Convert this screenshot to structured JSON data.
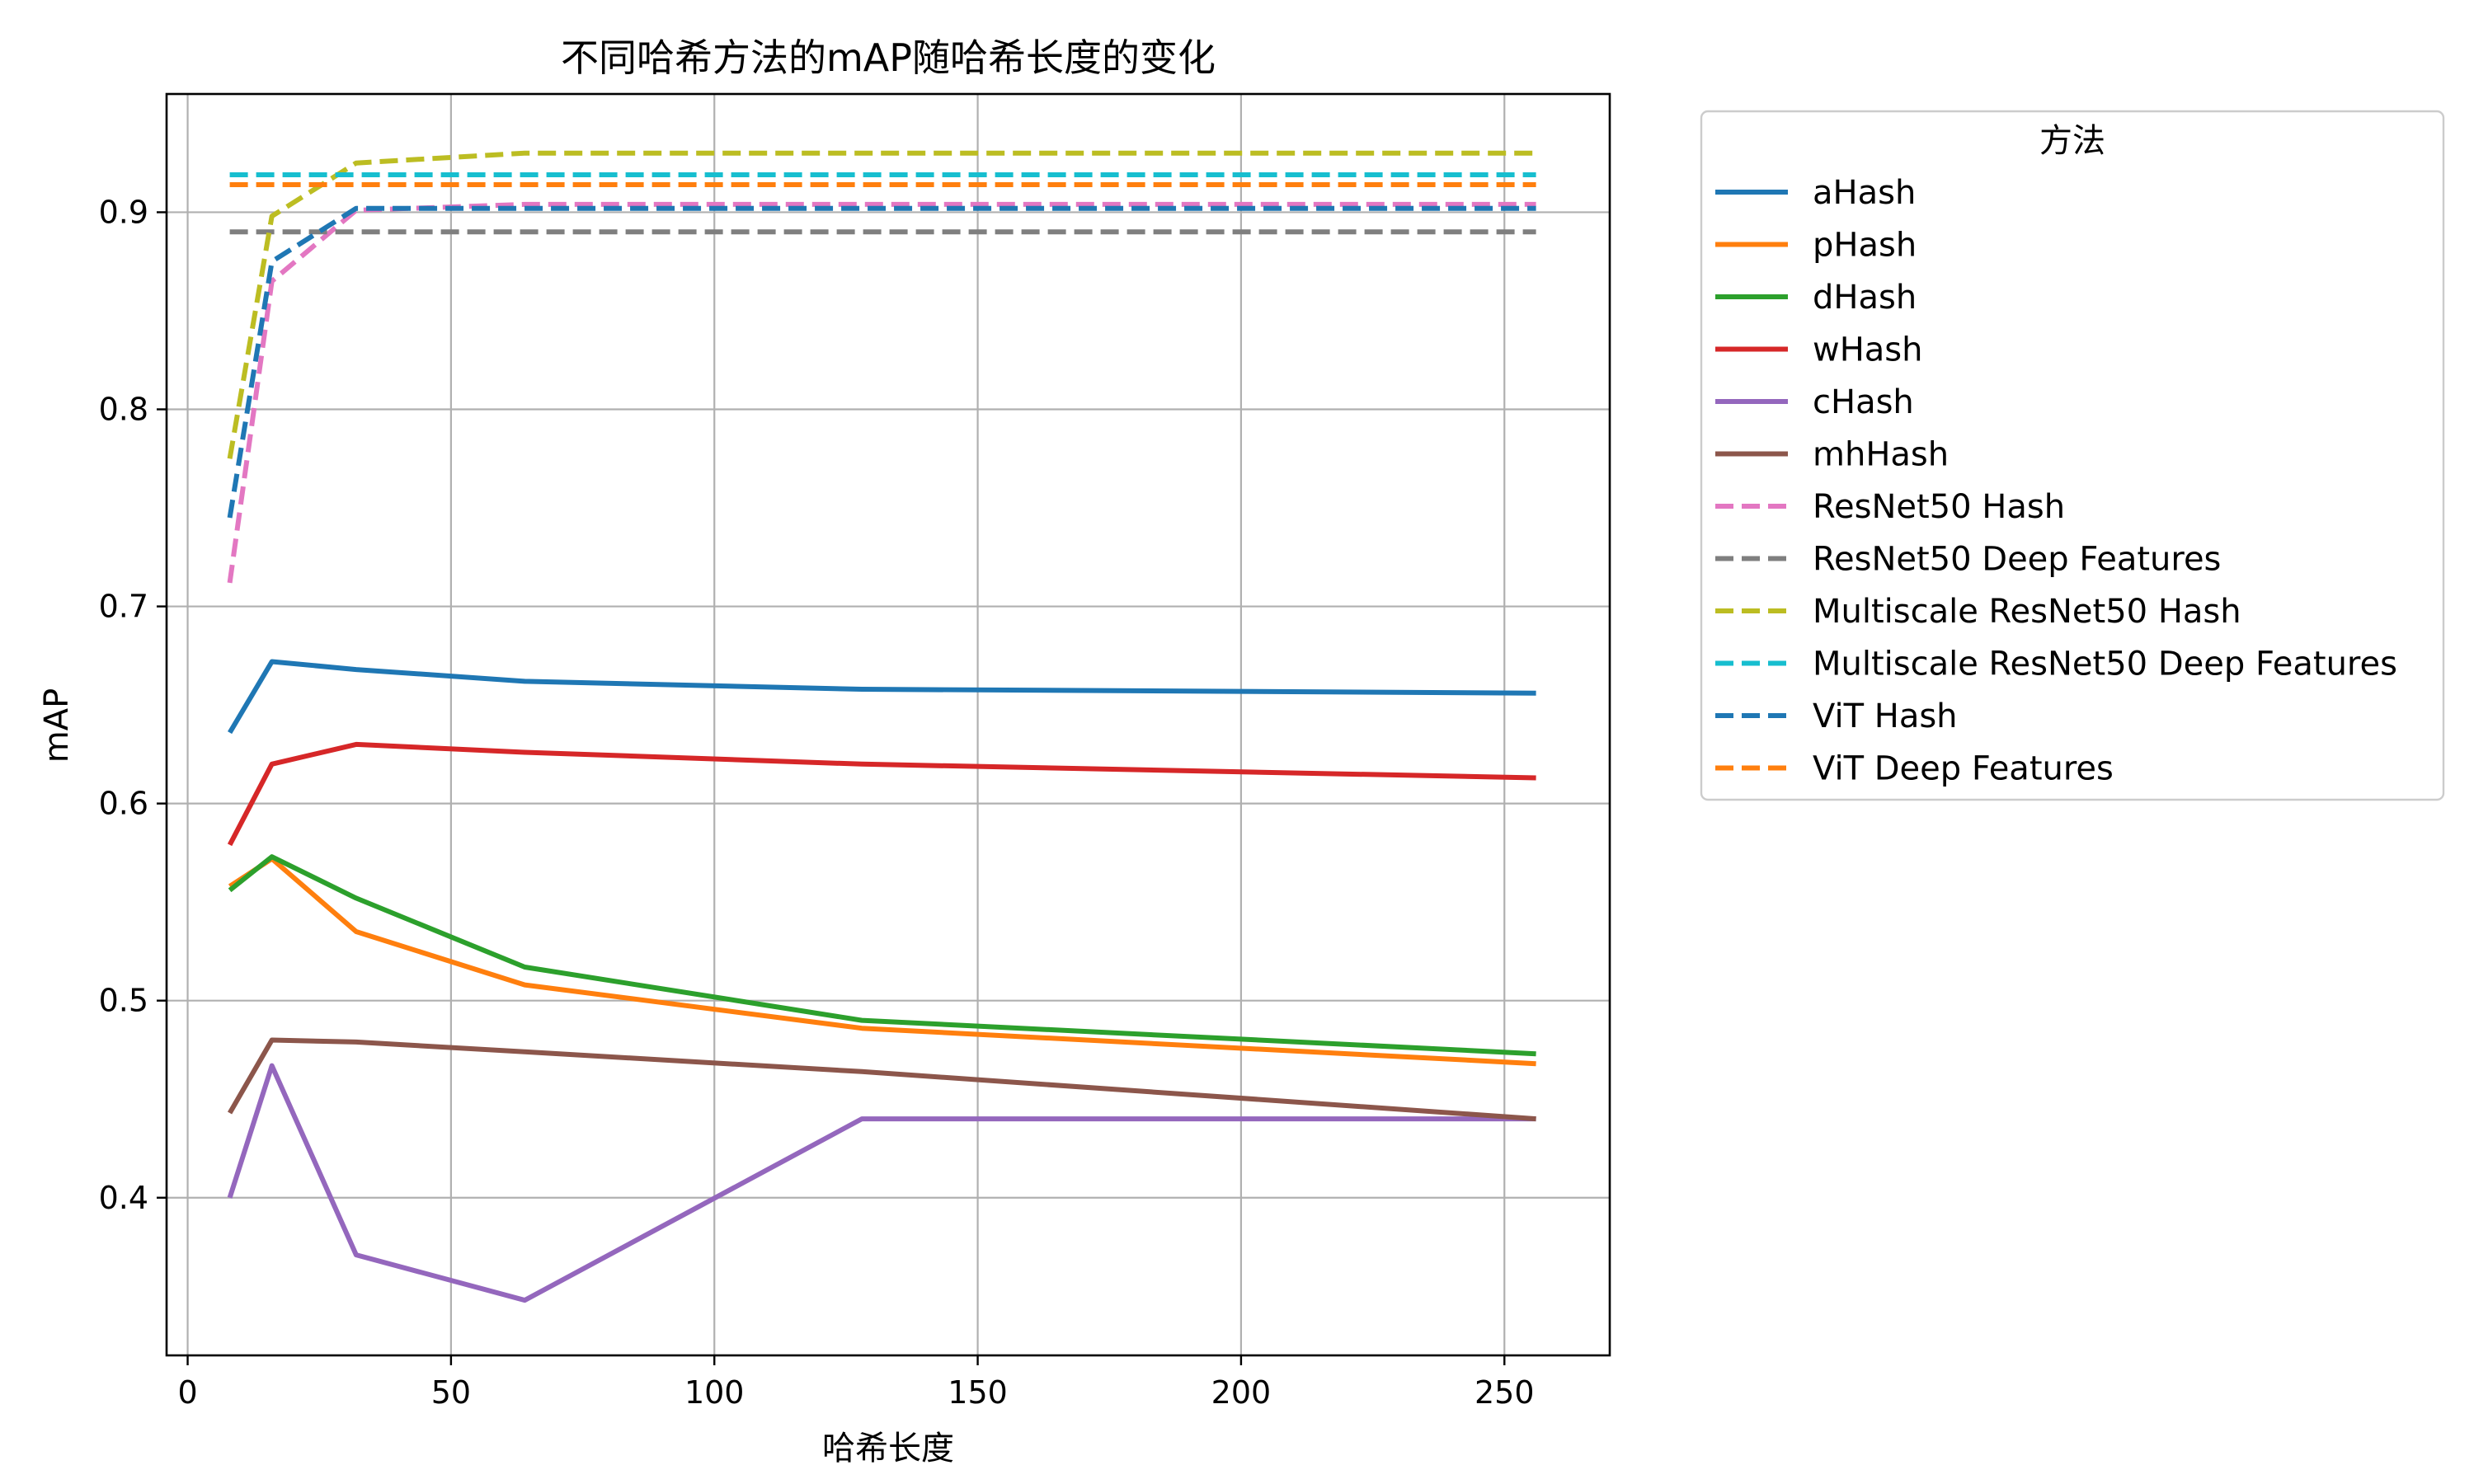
{
  "chart_data": {
    "type": "line",
    "title": "不同哈希方法的mAP随哈希长度的变化",
    "xlabel": "哈希长度",
    "ylabel": "mAP",
    "xlim": [
      -4,
      270
    ],
    "ylim": [
      0.32,
      0.96
    ],
    "x_ticks": [
      0,
      50,
      100,
      150,
      200,
      250
    ],
    "x_tick_labels": [
      "0",
      "50",
      "100",
      "150",
      "200",
      "250"
    ],
    "y_ticks": [
      0.4,
      0.5,
      0.6,
      0.7,
      0.8,
      0.9
    ],
    "y_tick_labels": [
      "0.4",
      "0.5",
      "0.6",
      "0.7",
      "0.8",
      "0.9"
    ],
    "grid": true,
    "legend": {
      "title": "方法",
      "placement": "outside-right"
    },
    "x": [
      8,
      16,
      32,
      64,
      128,
      256
    ],
    "series": [
      {
        "name": "aHash",
        "color": "#1f77b4",
        "dash": "solid",
        "values": [
          0.636,
          0.672,
          0.668,
          0.662,
          0.658,
          0.656
        ]
      },
      {
        "name": "pHash",
        "color": "#ff7f0e",
        "dash": "solid",
        "values": [
          0.558,
          0.572,
          0.535,
          0.508,
          0.486,
          0.468
        ]
      },
      {
        "name": "dHash",
        "color": "#2ca02c",
        "dash": "solid",
        "values": [
          0.556,
          0.573,
          0.552,
          0.517,
          0.49,
          0.473
        ]
      },
      {
        "name": "wHash",
        "color": "#d62728",
        "dash": "solid",
        "values": [
          0.579,
          0.62,
          0.63,
          0.626,
          0.62,
          0.613
        ]
      },
      {
        "name": "cHash",
        "color": "#9467bd",
        "dash": "solid",
        "values": [
          0.4,
          0.467,
          0.371,
          0.348,
          0.44,
          0.44
        ]
      },
      {
        "name": "mhHash",
        "color": "#8c564b",
        "dash": "solid",
        "values": [
          0.443,
          0.48,
          0.479,
          0.474,
          0.464,
          0.44
        ]
      },
      {
        "name": "ResNet50 Hash",
        "color": "#e377c2",
        "dash": "dashed",
        "values": [
          0.712,
          0.865,
          0.901,
          0.904,
          0.904,
          0.904
        ]
      },
      {
        "name": "ResNet50 Deep Features",
        "color": "#7f7f7f",
        "dash": "dashed",
        "values": [
          0.89,
          0.89,
          0.89,
          0.89,
          0.89,
          0.89
        ]
      },
      {
        "name": "Multiscale ResNet50 Hash",
        "color": "#bcbd22",
        "dash": "dashed",
        "values": [
          0.775,
          0.898,
          0.925,
          0.93,
          0.93,
          0.93
        ]
      },
      {
        "name": "Multiscale ResNet50 Deep Features",
        "color": "#17becf",
        "dash": "dashed",
        "values": [
          0.919,
          0.919,
          0.919,
          0.919,
          0.919,
          0.919
        ]
      },
      {
        "name": "ViT Hash",
        "color": "#1f77b4",
        "dash": "dashed",
        "values": [
          0.745,
          0.875,
          0.902,
          0.902,
          0.902,
          0.902
        ]
      },
      {
        "name": "ViT Deep Features",
        "color": "#ff7f0e",
        "dash": "dashed",
        "values": [
          0.914,
          0.914,
          0.914,
          0.914,
          0.914,
          0.914
        ]
      }
    ]
  }
}
